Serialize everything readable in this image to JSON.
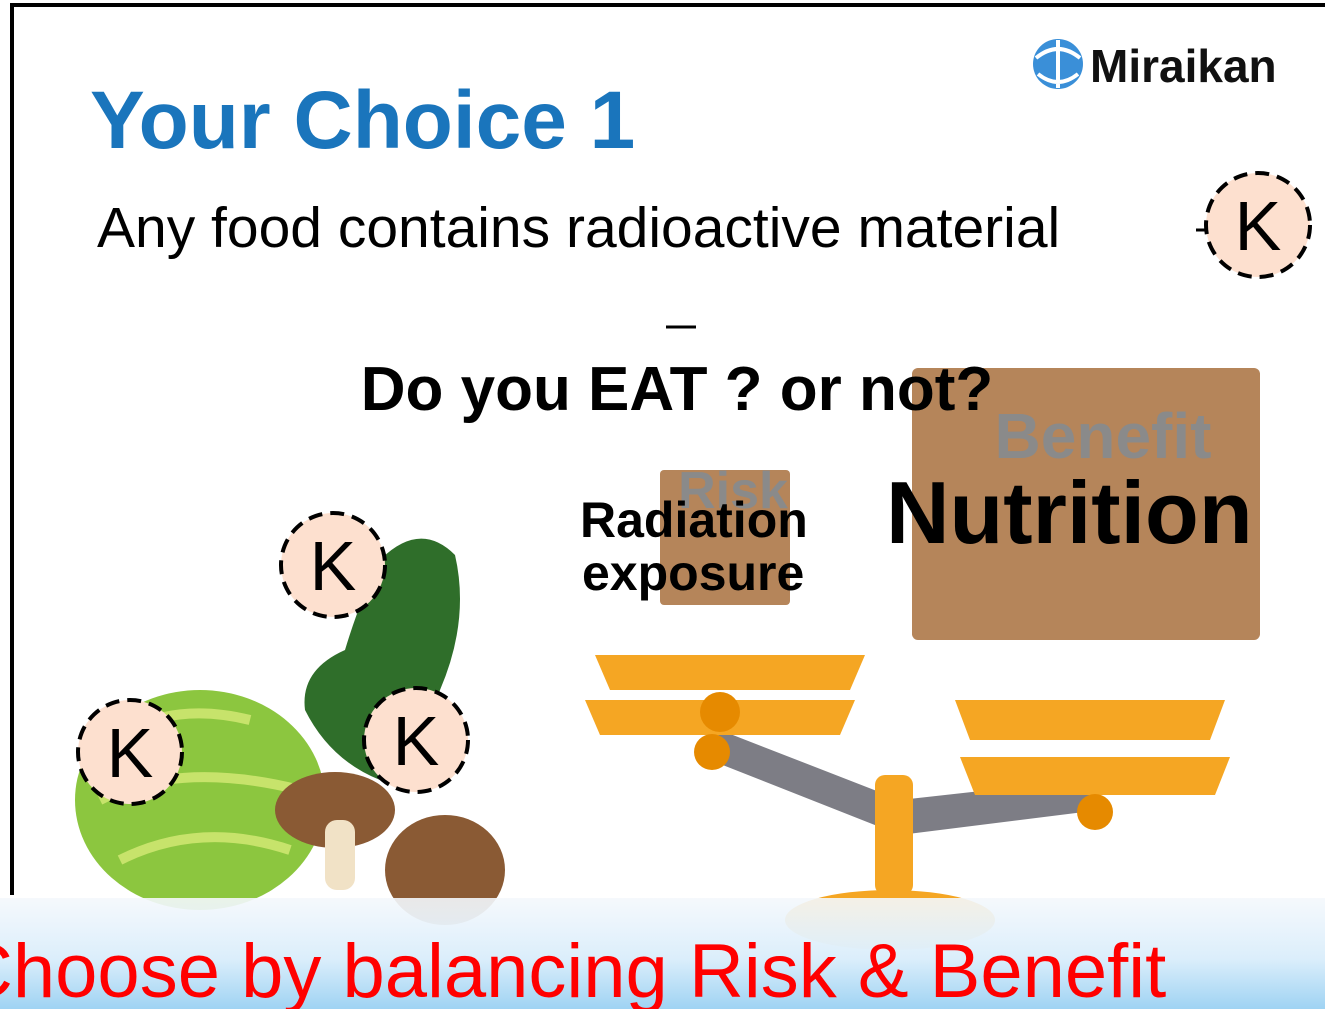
{
  "logo": {
    "text": "Miraikan"
  },
  "title": "Your Choice 1",
  "subtitle": "Any food contains radioactive material",
  "question": "Do you EAT ? or not?",
  "benefit": {
    "heading": "Benefit",
    "text": "Nutrition"
  },
  "risk": {
    "heading": "Risk",
    "text": [
      "Radiation",
      "exposure"
    ]
  },
  "markers": [
    {
      "label": "K"
    },
    {
      "label": "K"
    },
    {
      "label": "K"
    },
    {
      "label": "K"
    }
  ],
  "banner": "Choose by balancing Risk & Benefit"
}
